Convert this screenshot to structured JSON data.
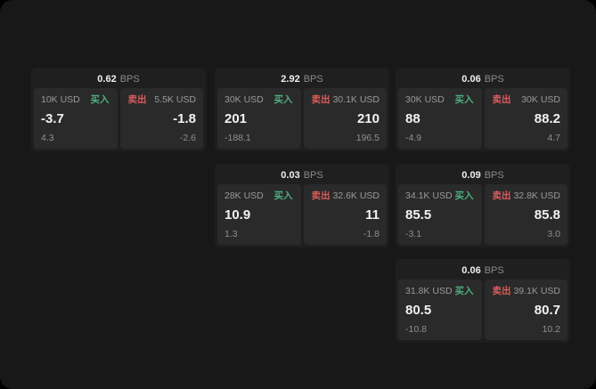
{
  "labels": {
    "buy": "买入",
    "sell": "卖出",
    "bps": "BPS"
  },
  "colors": {
    "background": "#181818",
    "card_bg": "#1f1f1f",
    "panel_bg": "#2a2a2a",
    "buy_green": "#4caf7e",
    "sell_red": "#d95c5c",
    "price_text": "#f2f2f2",
    "muted_text": "#8f8f8f"
  },
  "cards": [
    {
      "bps": "0.62",
      "buy": {
        "size": "10K USD",
        "price": "-3.7",
        "delta": "4.3"
      },
      "sell": {
        "size": "5.5K USD",
        "price": "-1.8",
        "delta": "-2.6"
      }
    },
    {
      "bps": "2.92",
      "buy": {
        "size": "30K USD",
        "price": "201",
        "delta": "-188.1"
      },
      "sell": {
        "size": "30.1K USD",
        "price": "210",
        "delta": "196.5"
      }
    },
    {
      "bps": "0.06",
      "buy": {
        "size": "30K USD",
        "price": "88",
        "delta": "-4.9"
      },
      "sell": {
        "size": "30K USD",
        "price": "88.2",
        "delta": "4.7"
      }
    },
    {
      "bps": "0.03",
      "buy": {
        "size": "28K USD",
        "price": "10.9",
        "delta": "1.3"
      },
      "sell": {
        "size": "32.6K USD",
        "price": "11",
        "delta": "-1.8"
      }
    },
    {
      "bps": "0.09",
      "buy": {
        "size": "34.1K USD",
        "price": "85.5",
        "delta": "-3.1"
      },
      "sell": {
        "size": "32.8K USD",
        "price": "85.8",
        "delta": "3.0"
      }
    },
    {
      "bps": "0.06",
      "buy": {
        "size": "31.8K USD",
        "price": "80.5",
        "delta": "-10.8"
      },
      "sell": {
        "size": "39.1K USD",
        "price": "80.7",
        "delta": "10.2"
      }
    }
  ]
}
